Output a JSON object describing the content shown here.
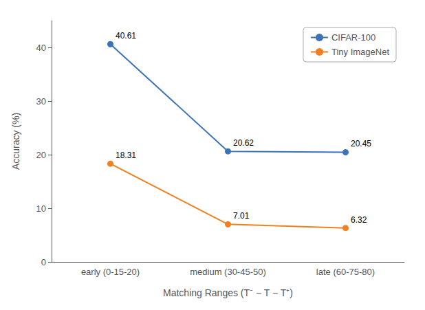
{
  "chart_data": {
    "type": "line",
    "categories": [
      "early (0-15-20)",
      "medium (30-45-50)",
      "late (60-75-80)"
    ],
    "series": [
      {
        "name": "CIFAR-100",
        "color": "#3C72B8",
        "values": [
          40.61,
          20.62,
          20.45
        ]
      },
      {
        "name": "Tiny ImageNet",
        "color": "#F08020",
        "values": [
          18.31,
          7.01,
          6.32
        ]
      }
    ],
    "marker": "circle",
    "xlabel": "Matching Ranges (T⁻ − T − T⁺)",
    "ylabel": "Accuracy (%)",
    "ylim": [
      0,
      45
    ],
    "yticks": [
      0,
      10,
      20,
      30,
      40
    ],
    "grid": false,
    "legend": "upper right",
    "data_labels": true
  }
}
